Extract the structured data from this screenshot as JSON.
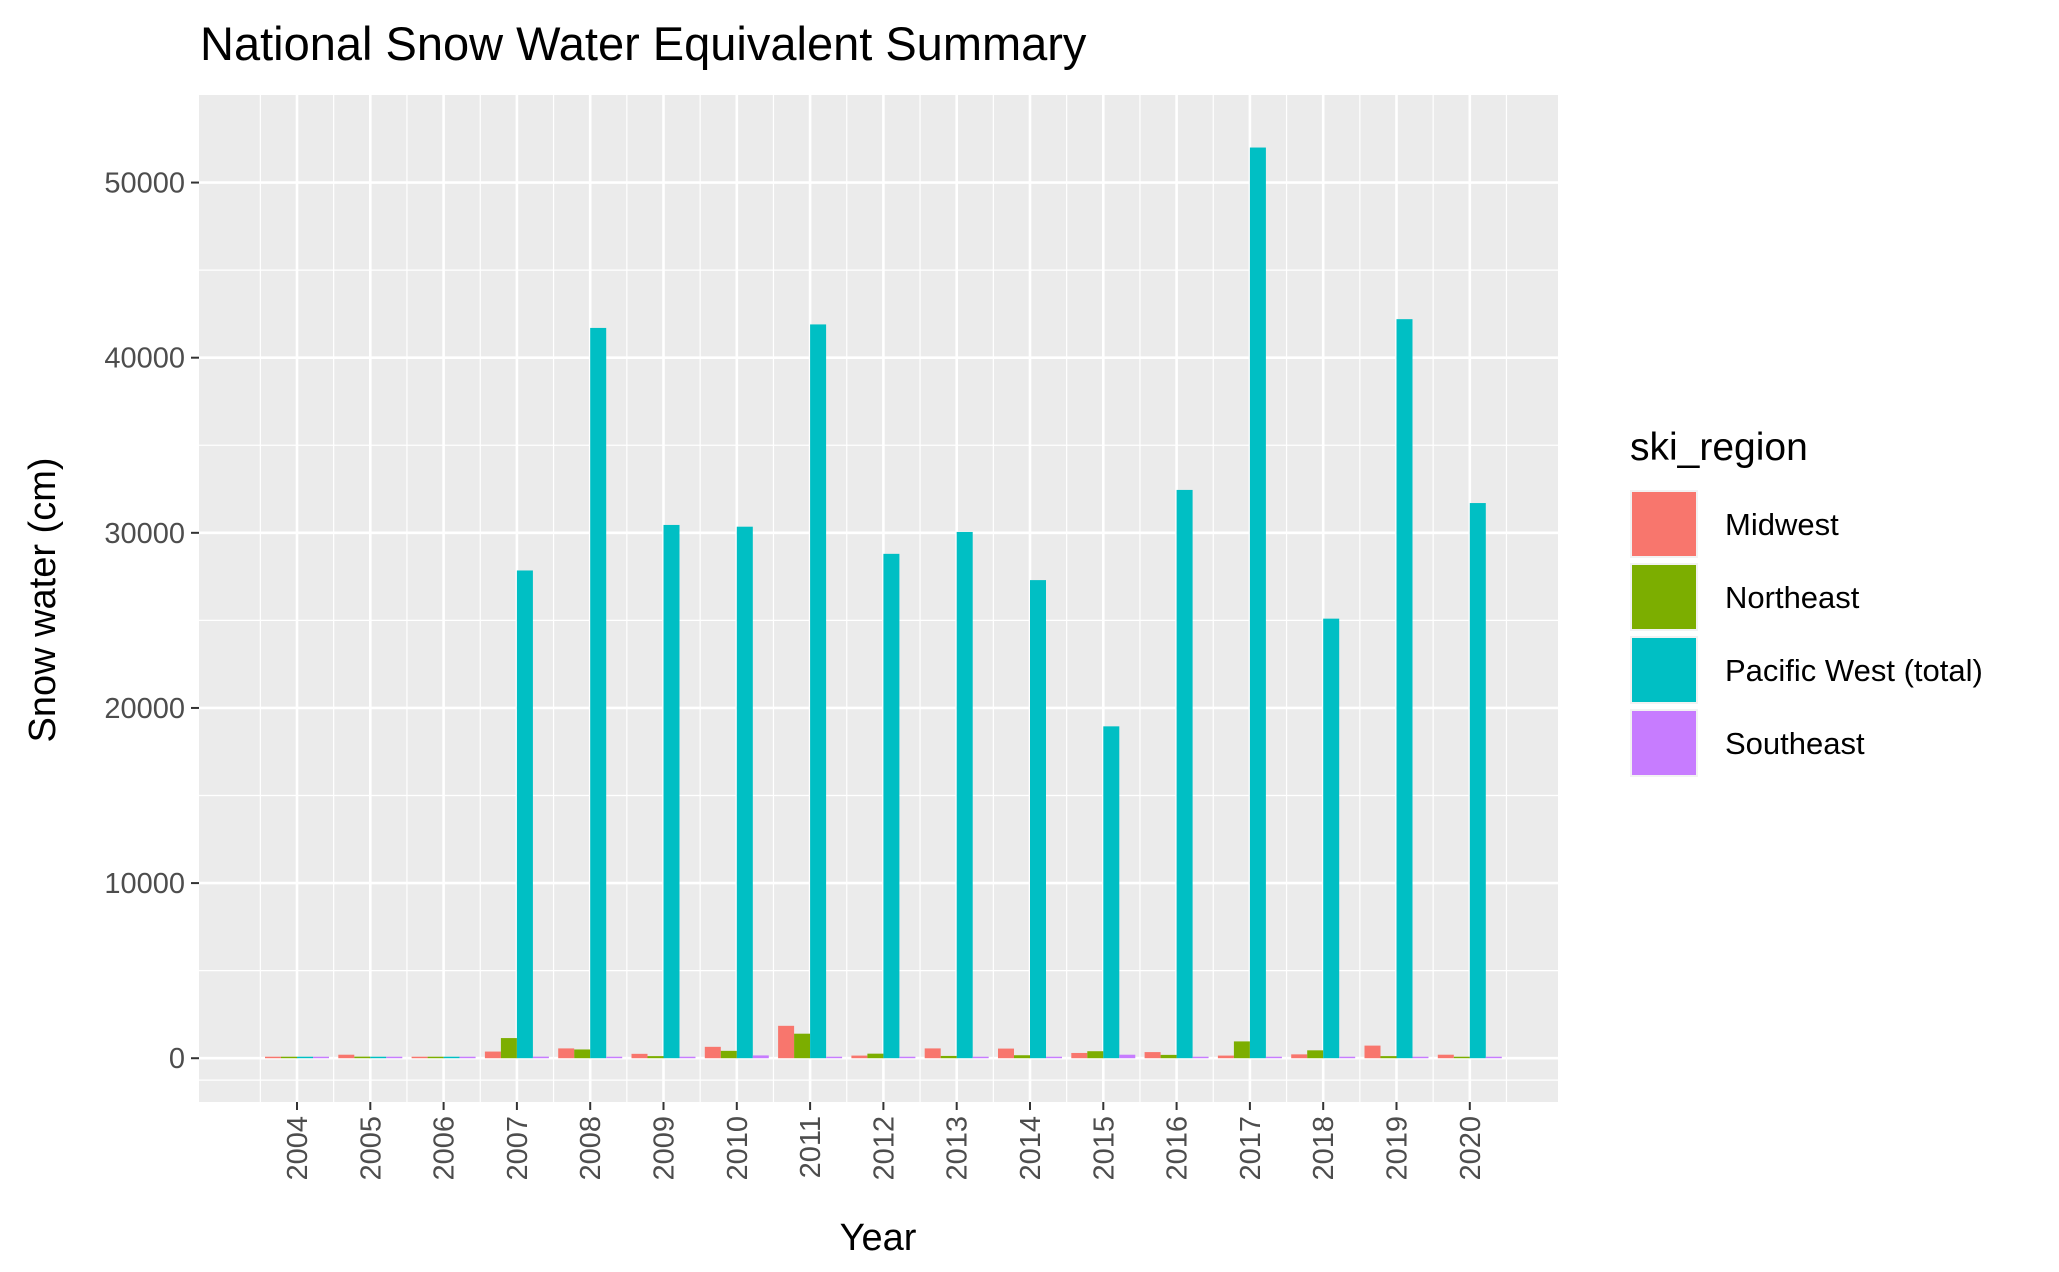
{
  "chart_data": {
    "type": "bar",
    "title": "National Snow Water Equivalent Summary",
    "xlabel": "Year",
    "ylabel": "Snow water (cm)",
    "ylim": [
      -2500,
      55000
    ],
    "yticks": [
      0,
      10000,
      20000,
      30000,
      40000,
      50000
    ],
    "grid": true,
    "legend_position": "right",
    "legend_title": "ski_region",
    "categories": [
      "2004",
      "2005",
      "2006",
      "2007",
      "2008",
      "2009",
      "2010",
      "2011",
      "2012",
      "2013",
      "2014",
      "2015",
      "2016",
      "2017",
      "2018",
      "2019",
      "2020"
    ],
    "series": [
      {
        "name": "Midwest",
        "color": "#F8766D",
        "values": [
          40,
          200,
          40,
          380,
          560,
          250,
          650,
          1850,
          150,
          560,
          550,
          300,
          350,
          150,
          220,
          720,
          200
        ]
      },
      {
        "name": "Northeast",
        "color": "#7CAE00",
        "values": [
          60,
          90,
          40,
          1150,
          500,
          120,
          420,
          1400,
          260,
          130,
          170,
          400,
          190,
          960,
          450,
          120,
          80
        ]
      },
      {
        "name": "Pacific West (total)",
        "color": "#00BFC4",
        "values": [
          30,
          20,
          40,
          27850,
          41700,
          30450,
          30350,
          41900,
          28800,
          30050,
          27300,
          18950,
          32450,
          52000,
          25100,
          42200,
          31700
        ]
      },
      {
        "name": "Southeast",
        "color": "#C77CFF",
        "values": [
          20,
          60,
          30,
          90,
          30,
          30,
          160,
          40,
          40,
          30,
          50,
          200,
          50,
          40,
          40,
          40,
          70
        ]
      }
    ]
  }
}
